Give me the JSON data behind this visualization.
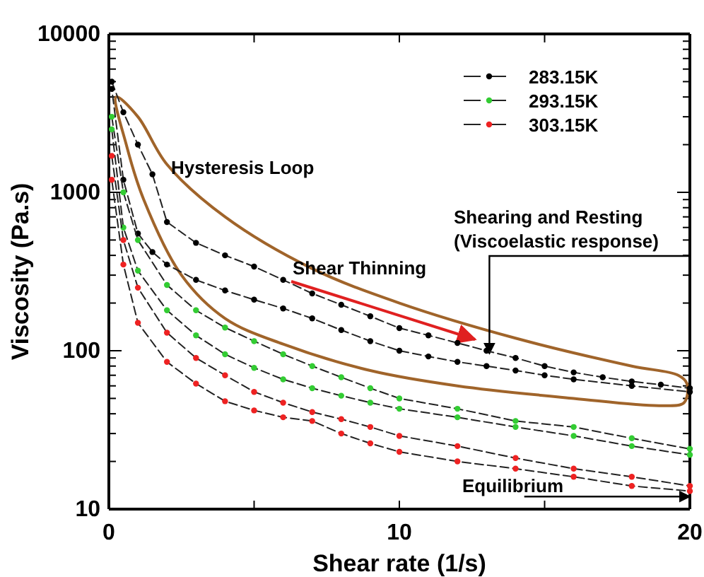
{
  "chart_data": {
    "type": "line",
    "xlabel": "Shear rate (1/s)",
    "ylabel": "Viscosity (Pa.s)",
    "log": "y",
    "xlim": [
      0,
      20
    ],
    "ylim": [
      10,
      10000
    ],
    "xticks": [
      0,
      {
        "value": 5,
        "label": null
      },
      10,
      {
        "value": 15,
        "label": null
      },
      20
    ],
    "yticks": [
      10,
      {
        "value": 20,
        "label": null
      },
      {
        "value": 30,
        "label": null
      },
      {
        "value": 40,
        "label": null
      },
      {
        "value": 50,
        "label": null
      },
      {
        "value": 60,
        "label": null
      },
      {
        "value": 70,
        "label": null
      },
      {
        "value": 80,
        "label": null
      },
      {
        "value": 90,
        "label": null
      },
      100,
      {
        "value": 200,
        "label": null
      },
      {
        "value": 300,
        "label": null
      },
      {
        "value": 400,
        "label": null
      },
      {
        "value": 500,
        "label": null
      },
      {
        "value": 600,
        "label": null
      },
      {
        "value": 700,
        "label": null
      },
      {
        "value": 800,
        "label": null
      },
      {
        "value": 900,
        "label": null
      },
      1000,
      {
        "value": 2000,
        "label": null
      },
      {
        "value": 3000,
        "label": null
      },
      {
        "value": 4000,
        "label": null
      },
      {
        "value": 5000,
        "label": null
      },
      {
        "value": 6000,
        "label": null
      },
      {
        "value": 7000,
        "label": null
      },
      {
        "value": 8000,
        "label": null
      },
      {
        "value": 9000,
        "label": null
      },
      10000
    ],
    "grid": false,
    "legend": "top right",
    "marker": "circle",
    "line_style": "dashed",
    "series": [
      {
        "name": "283.15K",
        "color": "#000000",
        "x": [
          0.1,
          0.5,
          1,
          1.5,
          2,
          3,
          4,
          5,
          6,
          7,
          8,
          9,
          10,
          11,
          12,
          13,
          14,
          15,
          16,
          17,
          18,
          19,
          20,
          20,
          18,
          16,
          15,
          14,
          13,
          12,
          11,
          10,
          9,
          8,
          7,
          6,
          5,
          4,
          3,
          2,
          1.5,
          1,
          0.5,
          0.1
        ],
        "values": [
          5000,
          3200,
          2000,
          1300,
          650,
          480,
          400,
          340,
          280,
          230,
          195,
          165,
          139,
          125,
          112,
          100,
          90,
          80,
          73,
          68,
          64,
          61,
          58,
          55,
          60,
          66,
          70,
          75,
          80,
          85,
          92,
          100,
          115,
          135,
          160,
          185,
          210,
          240,
          280,
          350,
          420,
          550,
          1200,
          4500
        ]
      },
      {
        "name": "293.15K",
        "color": "#33cc33",
        "x": [
          0.1,
          0.5,
          1,
          2,
          3,
          4,
          5,
          6,
          7,
          8,
          9,
          10,
          12,
          14,
          16,
          18,
          20,
          20,
          18,
          16,
          14,
          12,
          10,
          9,
          8,
          7,
          6,
          5,
          4,
          3,
          2,
          1,
          0.5,
          0.1
        ],
        "values": [
          3000,
          1000,
          500,
          260,
          180,
          140,
          115,
          95,
          80,
          68,
          58,
          50,
          43,
          36,
          33,
          28,
          24,
          22,
          25,
          29,
          33,
          38,
          43,
          47,
          52,
          58,
          66,
          78,
          95,
          125,
          180,
          320,
          600,
          2500
        ]
      },
      {
        "name": "303.15K",
        "color": "#ee2222",
        "x": [
          0.1,
          0.5,
          1,
          2,
          3,
          4,
          5,
          6,
          7,
          8,
          9,
          10,
          12,
          14,
          16,
          18,
          20,
          20,
          18,
          16,
          14,
          12,
          10,
          9,
          8,
          7,
          6,
          5,
          4,
          3,
          2,
          1,
          0.5,
          0.1
        ],
        "values": [
          1700,
          500,
          250,
          130,
          90,
          70,
          55,
          47,
          41,
          37,
          33,
          29,
          25,
          21,
          18,
          16,
          14,
          13,
          14,
          16,
          18,
          20,
          23,
          26,
          30,
          36,
          38,
          42,
          48,
          62,
          85,
          150,
          350,
          1200
        ]
      }
    ],
    "annotations": [
      "Hysteresis Loop",
      "Shear Thinning",
      "Shearing and Resting\n(Viscoelastic response)",
      {
        "text": "Equilibrium",
        "x": 20,
        "y": 12
      }
    ]
  }
}
